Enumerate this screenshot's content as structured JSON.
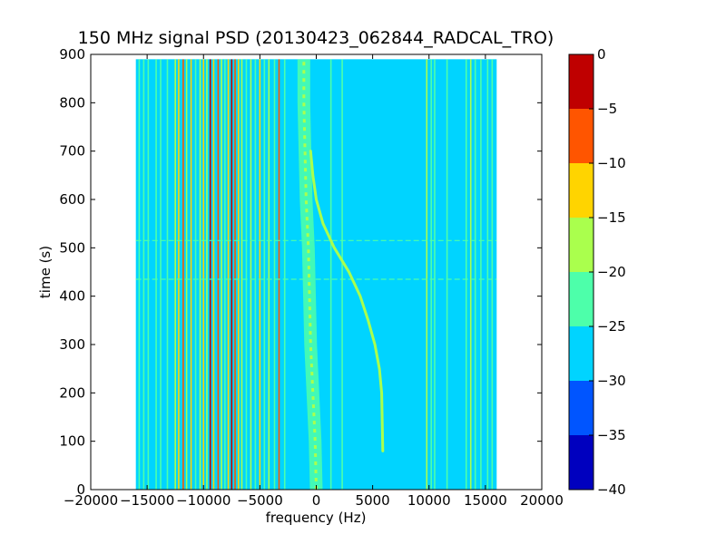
{
  "chart_data": {
    "type": "heatmap",
    "title": "150 MHz signal PSD (20130423_062844_RADCAL_TRO)",
    "xlabel": "frequency (Hz)",
    "ylabel": "time (s)",
    "xlim": [
      -20000,
      20000
    ],
    "ylim": [
      0,
      900
    ],
    "x_ticks": [
      "−20000",
      "−15000",
      "−10000",
      "−5000",
      "0",
      "5000",
      "10000",
      "15000",
      "20000"
    ],
    "y_ticks": [
      "0",
      "100",
      "200",
      "300",
      "400",
      "500",
      "600",
      "700",
      "800",
      "900"
    ],
    "data_extent": {
      "x": [
        -16000,
        16000
      ],
      "y": [
        0,
        890
      ]
    },
    "background_level": -27.5,
    "colorbar": {
      "ticks": [
        "0",
        "−5",
        "−10",
        "−15",
        "−20",
        "−25",
        "−30",
        "−35",
        "−40"
      ],
      "levels": [
        {
          "range": [
            -5,
            0
          ],
          "color": "#bf0000"
        },
        {
          "range": [
            -10,
            -5
          ],
          "color": "#ff5500"
        },
        {
          "range": [
            -15,
            -10
          ],
          "color": "#ffd400"
        },
        {
          "range": [
            -20,
            -15
          ],
          "color": "#aaff4d"
        },
        {
          "range": [
            -25,
            -20
          ],
          "color": "#4dffaa"
        },
        {
          "range": [
            -30,
            -25
          ],
          "color": "#00d4ff"
        },
        {
          "range": [
            -35,
            -30
          ],
          "color": "#0055ff"
        },
        {
          "range": [
            -40,
            -35
          ],
          "color": "#0000bf"
        }
      ]
    },
    "vertical_lines": [
      {
        "freq": -15700,
        "level": -22
      },
      {
        "freq": -15300,
        "level": -22
      },
      {
        "freq": -14900,
        "level": -22
      },
      {
        "freq": -14200,
        "level": -22
      },
      {
        "freq": -13800,
        "level": -22
      },
      {
        "freq": -13200,
        "level": -22
      },
      {
        "freq": -12500,
        "level": -17
      },
      {
        "freq": -12200,
        "level": -12
      },
      {
        "freq": -11800,
        "level": -7
      },
      {
        "freq": -11500,
        "level": -17
      },
      {
        "freq": -11100,
        "level": -12
      },
      {
        "freq": -10700,
        "level": -22
      },
      {
        "freq": -10300,
        "level": -17
      },
      {
        "freq": -10000,
        "level": -12
      },
      {
        "freq": -9700,
        "level": -17
      },
      {
        "freq": -9400,
        "level": -2
      },
      {
        "freq": -9100,
        "level": -12
      },
      {
        "freq": -8700,
        "level": -7
      },
      {
        "freq": -8400,
        "level": -17
      },
      {
        "freq": -8100,
        "level": -22
      },
      {
        "freq": -7800,
        "level": -12
      },
      {
        "freq": -7500,
        "level": -2
      },
      {
        "freq": -7200,
        "level": -7
      },
      {
        "freq": -6900,
        "level": -12
      },
      {
        "freq": -6600,
        "level": -17
      },
      {
        "freq": -6200,
        "level": -22
      },
      {
        "freq": -5800,
        "level": -17
      },
      {
        "freq": -5400,
        "level": -22
      },
      {
        "freq": -5000,
        "level": -12
      },
      {
        "freq": -4600,
        "level": -22
      },
      {
        "freq": -4200,
        "level": -17
      },
      {
        "freq": -3700,
        "level": -22
      },
      {
        "freq": -3300,
        "level": -7
      },
      {
        "freq": -2800,
        "level": -22
      },
      {
        "freq": 1300,
        "level": -22
      },
      {
        "freq": 2300,
        "level": -22
      },
      {
        "freq": 9800,
        "level": -17
      },
      {
        "freq": 10200,
        "level": -22
      },
      {
        "freq": 10500,
        "level": -22
      },
      {
        "freq": 11600,
        "level": -22
      },
      {
        "freq": 13300,
        "level": -22
      },
      {
        "freq": 13700,
        "level": -17
      },
      {
        "freq": 14100,
        "level": -22
      },
      {
        "freq": 14600,
        "level": -22
      },
      {
        "freq": 15200,
        "level": -22
      },
      {
        "freq": 15600,
        "level": -22
      }
    ],
    "noise_band": {
      "level": -22,
      "points": [
        {
          "t": 0,
          "freq": 0
        },
        {
          "t": 100,
          "freq": -100
        },
        {
          "t": 200,
          "freq": -300
        },
        {
          "t": 300,
          "freq": -500
        },
        {
          "t": 400,
          "freq": -600
        },
        {
          "t": 500,
          "freq": -700
        },
        {
          "t": 600,
          "freq": -900
        },
        {
          "t": 700,
          "freq": -1000
        },
        {
          "t": 800,
          "freq": -1100
        },
        {
          "t": 890,
          "freq": -1100
        }
      ]
    },
    "doppler_curve": {
      "level": -17,
      "points": [
        {
          "t": 80,
          "freq": 5900
        },
        {
          "t": 200,
          "freq": 5800
        },
        {
          "t": 250,
          "freq": 5600
        },
        {
          "t": 300,
          "freq": 5200
        },
        {
          "t": 350,
          "freq": 4600
        },
        {
          "t": 400,
          "freq": 3900
        },
        {
          "t": 450,
          "freq": 2900
        },
        {
          "t": 500,
          "freq": 1600
        },
        {
          "t": 550,
          "freq": 600
        },
        {
          "t": 600,
          "freq": 0
        },
        {
          "t": 650,
          "freq": -300
        },
        {
          "t": 700,
          "freq": -500
        }
      ]
    },
    "horizontal_lines": [
      {
        "t": 515,
        "level": -22
      },
      {
        "t": 435,
        "level": -22
      }
    ]
  }
}
